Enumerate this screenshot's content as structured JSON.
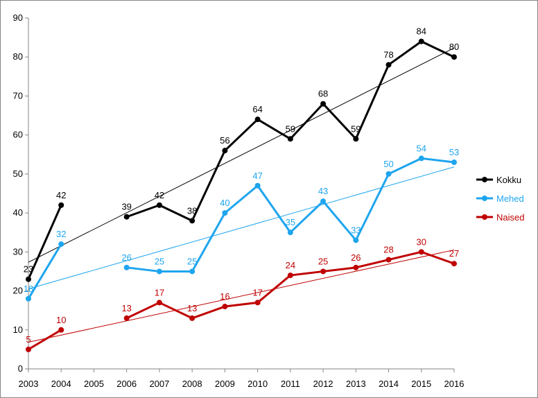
{
  "chart_data": {
    "type": "line",
    "title": "",
    "xlabel": "",
    "ylabel": "",
    "categories": [
      "2003",
      "2004",
      "2005",
      "2006",
      "2007",
      "2008",
      "2009",
      "2010",
      "2011",
      "2012",
      "2013",
      "2014",
      "2015",
      "2016"
    ],
    "ylim": [
      0,
      90
    ],
    "yticks": [
      "0",
      "10",
      "20",
      "30",
      "40",
      "50",
      "60",
      "70",
      "80",
      "90"
    ],
    "grid": false,
    "legend_position": "right",
    "trendlines": true,
    "series": [
      {
        "name": "Kokku",
        "color": "#000000",
        "values": [
          23,
          42,
          null,
          39,
          42,
          38,
          56,
          64,
          59,
          68,
          59,
          78,
          84,
          80
        ]
      },
      {
        "name": "Mehed",
        "color": "#1ea5ee",
        "values": [
          18,
          32,
          null,
          26,
          25,
          25,
          40,
          47,
          35,
          43,
          33,
          50,
          54,
          53
        ]
      },
      {
        "name": "Naised",
        "color": "#c00000",
        "values": [
          5,
          10,
          null,
          13,
          17,
          13,
          16,
          17,
          24,
          25,
          26,
          28,
          30,
          27
        ]
      }
    ]
  }
}
